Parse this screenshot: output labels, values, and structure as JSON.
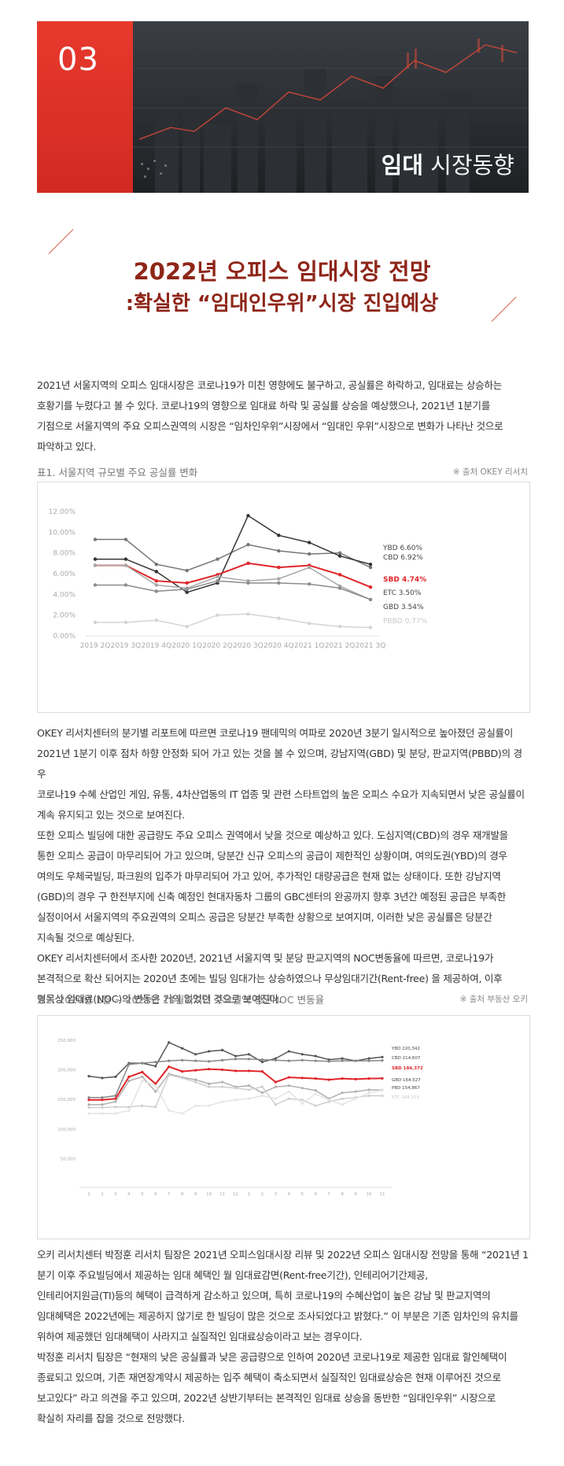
{
  "banner": {
    "number": "03",
    "title_bold": "임대",
    "title_rest": " 시장동향"
  },
  "title": {
    "line1": "2022년 오피스 임대시장 전망",
    "line2": ":확실한 “임대인우위”시장 진입예상"
  },
  "intro": "2021년 서울지역의 오피스 임대시장은 코로나19가 미친 영향에도 불구하고, 공실률은 하락하고, 임대료는 상승하는\n호황기를 누렸다고 볼 수 있다.  코로나19의 영향으로 임대료 하락 및 공실률 상승을 예상했으나, 2021년 1분기를\n기점으로 서울지역의 주요 오피스권역의 시장은 “임차인우위”시장에서 “임대인 우위”시장으로 변화가 나타난 것으로\n파악하고 있다.",
  "table1": {
    "caption": "표1. 서울지역 규모별 주요 공실률 변화",
    "source": "※ 출처 OKEY 리서치"
  },
  "chart_data": [
    {
      "type": "line",
      "categories": [
        "2019 2Q",
        "2019 3Q",
        "2019 4Q",
        "2020 1Q",
        "2020 2Q",
        "2020 3Q",
        "2020 4Q",
        "2021 1Q",
        "2021 2Q",
        "2021 3Q"
      ],
      "yticks": [
        "12.00%",
        "10.00%",
        "8.00%",
        "6.00%",
        "4.00%",
        "2.00%",
        "0.00%"
      ],
      "ylim": [
        0,
        12
      ],
      "series": [
        {
          "name": "YBD 6.60%",
          "color": "#777777",
          "values": [
            9.3,
            9.3,
            6.9,
            6.3,
            7.4,
            8.8,
            8.2,
            7.9,
            8.0,
            6.6
          ]
        },
        {
          "name": "CBD 6.92%",
          "color": "#333333",
          "values": [
            7.4,
            7.4,
            6.2,
            4.2,
            5.1,
            11.6,
            9.7,
            9.0,
            7.7,
            6.9
          ]
        },
        {
          "name": "SBD 4.74%",
          "color": "#e0262a",
          "values": [
            6.8,
            6.8,
            5.3,
            5.1,
            5.9,
            7.0,
            6.6,
            6.8,
            5.9,
            4.7
          ]
        },
        {
          "name": "ETC 3.50%",
          "color": "#a8a8a8",
          "values": [
            6.8,
            6.8,
            4.9,
            4.6,
            5.7,
            5.3,
            5.5,
            6.6,
            4.8,
            3.5
          ]
        },
        {
          "name": "GBD 3.54%",
          "color": "#8c8c8c",
          "values": [
            4.9,
            4.9,
            4.3,
            4.5,
            5.3,
            5.1,
            5.1,
            5.0,
            4.6,
            3.5
          ]
        },
        {
          "name": "PBBD 0.77%",
          "color": "#d4d4d4",
          "values": [
            1.3,
            1.3,
            1.5,
            0.9,
            2.0,
            2.1,
            1.7,
            1.2,
            0.9,
            0.8
          ]
        }
      ]
    },
    {
      "type": "line",
      "categories": [
        "1",
        "2",
        "3",
        "4",
        "5",
        "6",
        "7",
        "8",
        "9",
        "10",
        "11",
        "12",
        "1",
        "2",
        "3",
        "4",
        "5",
        "6",
        "7",
        "8",
        "9",
        "10",
        "11"
      ],
      "yticks": [
        "250,000",
        "200,000",
        "150,000",
        "100,000",
        "50,000"
      ],
      "ylim": [
        0,
        250000
      ],
      "series": [
        {
          "name": "YBD 220,342",
          "color": "#555555",
          "values": [
            188000,
            185000,
            187000,
            210000,
            210000,
            205000,
            245000,
            235000,
            225000,
            230000,
            232000,
            222000,
            225000,
            212000,
            218000,
            230000,
            225000,
            222000,
            216000,
            218000,
            214000,
            218000,
            220342
          ]
        },
        {
          "name": "CBD 214,607",
          "color": "#888888",
          "values": [
            152000,
            152000,
            155000,
            208000,
            210000,
            212000,
            214000,
            215000,
            214000,
            213000,
            215000,
            217000,
            217000,
            216000,
            215000,
            214000,
            215000,
            214000,
            213000,
            214000,
            214000,
            214000,
            214607
          ]
        },
        {
          "name": "SBD 184,372",
          "color": "#e0262a",
          "values": [
            148000,
            148000,
            150000,
            187000,
            195000,
            175000,
            204000,
            196000,
            198000,
            200000,
            199000,
            197000,
            197000,
            196000,
            178000,
            186000,
            185000,
            184000,
            182000,
            184000,
            183000,
            184000,
            184372
          ]
        },
        {
          "name": "GBD 164,527",
          "color": "#b0b0b0",
          "values": [
            140000,
            140000,
            145000,
            180000,
            187000,
            162000,
            192000,
            186000,
            182000,
            175000,
            178000,
            170000,
            172000,
            160000,
            170000,
            172000,
            168000,
            164000,
            150000,
            160000,
            162000,
            165000,
            164527
          ]
        },
        {
          "name": "PBD 154,867",
          "color": "#cfcfcf",
          "values": [
            135000,
            135000,
            136000,
            136000,
            138000,
            136000,
            190000,
            185000,
            178000,
            170000,
            170000,
            168000,
            165000,
            170000,
            140000,
            150000,
            148000,
            138000,
            145000,
            150000,
            152000,
            155000,
            154867
          ]
        },
        {
          "name": "ETC 164,314",
          "color": "#e4e4e4",
          "values": [
            125000,
            125000,
            125000,
            130000,
            180000,
            172000,
            130000,
            125000,
            138000,
            138000,
            145000,
            148000,
            150000,
            155000,
            150000,
            162000,
            142000,
            158000,
            148000,
            140000,
            150000,
            160000,
            164314
          ]
        }
      ]
    }
  ],
  "para2": "OKEY 리서치센터의 분기별 리포트에 따르면 코로나19 팬데믹의 여파로 2020년 3분기 일시적으로 높아졌던 공실률이\n2021년 1분기 이후 점차 하향 안정화 되어 가고 있는 것을 볼 수 있으며, 강남지역(GBD) 및 분당, 판교지역(PBBD)의 경우\n코로나19 수혜 산업인 게임, 유통, 4차산업동의 IT 업종 및 관련 스타트업의 높은 오피스 수요가 지속되면서 낮은 공실률이\n계속 유지되고 있는 것으로 보여진다.\n또한 오피스 빌딩에 대한 공급량도 주요 오피스 권역에서 낮을 것으로 예상하고 있다. 도심지역(CBD)의 경우 재개발을\n통한 오피스 공급이 마무리되어 가고 있으며, 당분간 신규 오피스의 공급이 제한적인 상황이며, 여의도권(YBD)의 경우\n여의도 우체국빌딩, 파크원의 입주가 마무리되어 가고 있어, 추가적인 대량공급은 현재 없는 상태이다. 또한 강남지역\n(GBD)의 경우 구 한전부지에 신축 예정인 현대자동차 그룹의 GBC센터의 완공까지 향후 3년간 예정된 공급은 부족한\n실정이어서 서울지역의 주요권역의 오피스 공급은 당분간 부족한 상황으로 보여지며, 이러한 낮은 공실률은 당분간\n지속될 것으로 예상된다.\nOKEY 리서치센터에서 조사한 2020년, 2021년 서울지역 및 분당 판교지역의 NOC변동율에 따르면, 코로나19가\n본격적으로 확산 되어지는 2020년 초에는 빌딩 임대가는 상승하였으나 무상임대기간(Rent-free) 을 제공하여, 이후\n명목상 임대료(NOC)의 변동은 거의 없었던 것으로 보여진다.",
  "table2": {
    "caption": "표2. 2020년 1월 ~ 2021년 11월까지의 주요권역 평균NOC 변동율",
    "source": "※ 출처 부동산 오키"
  },
  "para3": "오키 리서치센터 박정훈 리서치 팀장은 2021년 오피스임대시장 리뷰 및 2022년 오피스 임대시장 전망을 통해 “2021년 1\n분기 이후 주요빌딩에서 제공하는 임대 혜택인 월 임대료감면(Rent-free기간), 인테리어기간제공,\n인테리어지원금(TI)등의 혜택이 급격하게 감소하고 있으며, 특히 코로나19의 수혜산업이 높은 강남 및 판교지역의\n임대혜택은 2022년에는 제공하지 않기로 한 빌딩이 많은 것으로 조사되었다고 밝혔다.”  이 부분은 기존 임차인의 유치를\n위하여 제공했던 임대혜택이 사라지고 실질적인 임대료상승이라고 보는 경우이다.\n박정훈 리서치 팀장은 “현재의 낮은 공실률과 낮은 공급량으로 인하여 2020년 코로나19로 제공한 임대료 할인혜택이\n종료되고 있으며, 기존 재연장계약시 제공하는 입주 혜택이 축소되면서 실질적인 임대료상승은 현재 이루어진 것으로\n보고있다” 라고 의견을 주고 있으며,  2022년 상반기부터는 본격적인 임대료 상승을 동반한 “임대인우위” 시장으로\n확실히 자리를 잡을 것으로 전망했다."
}
